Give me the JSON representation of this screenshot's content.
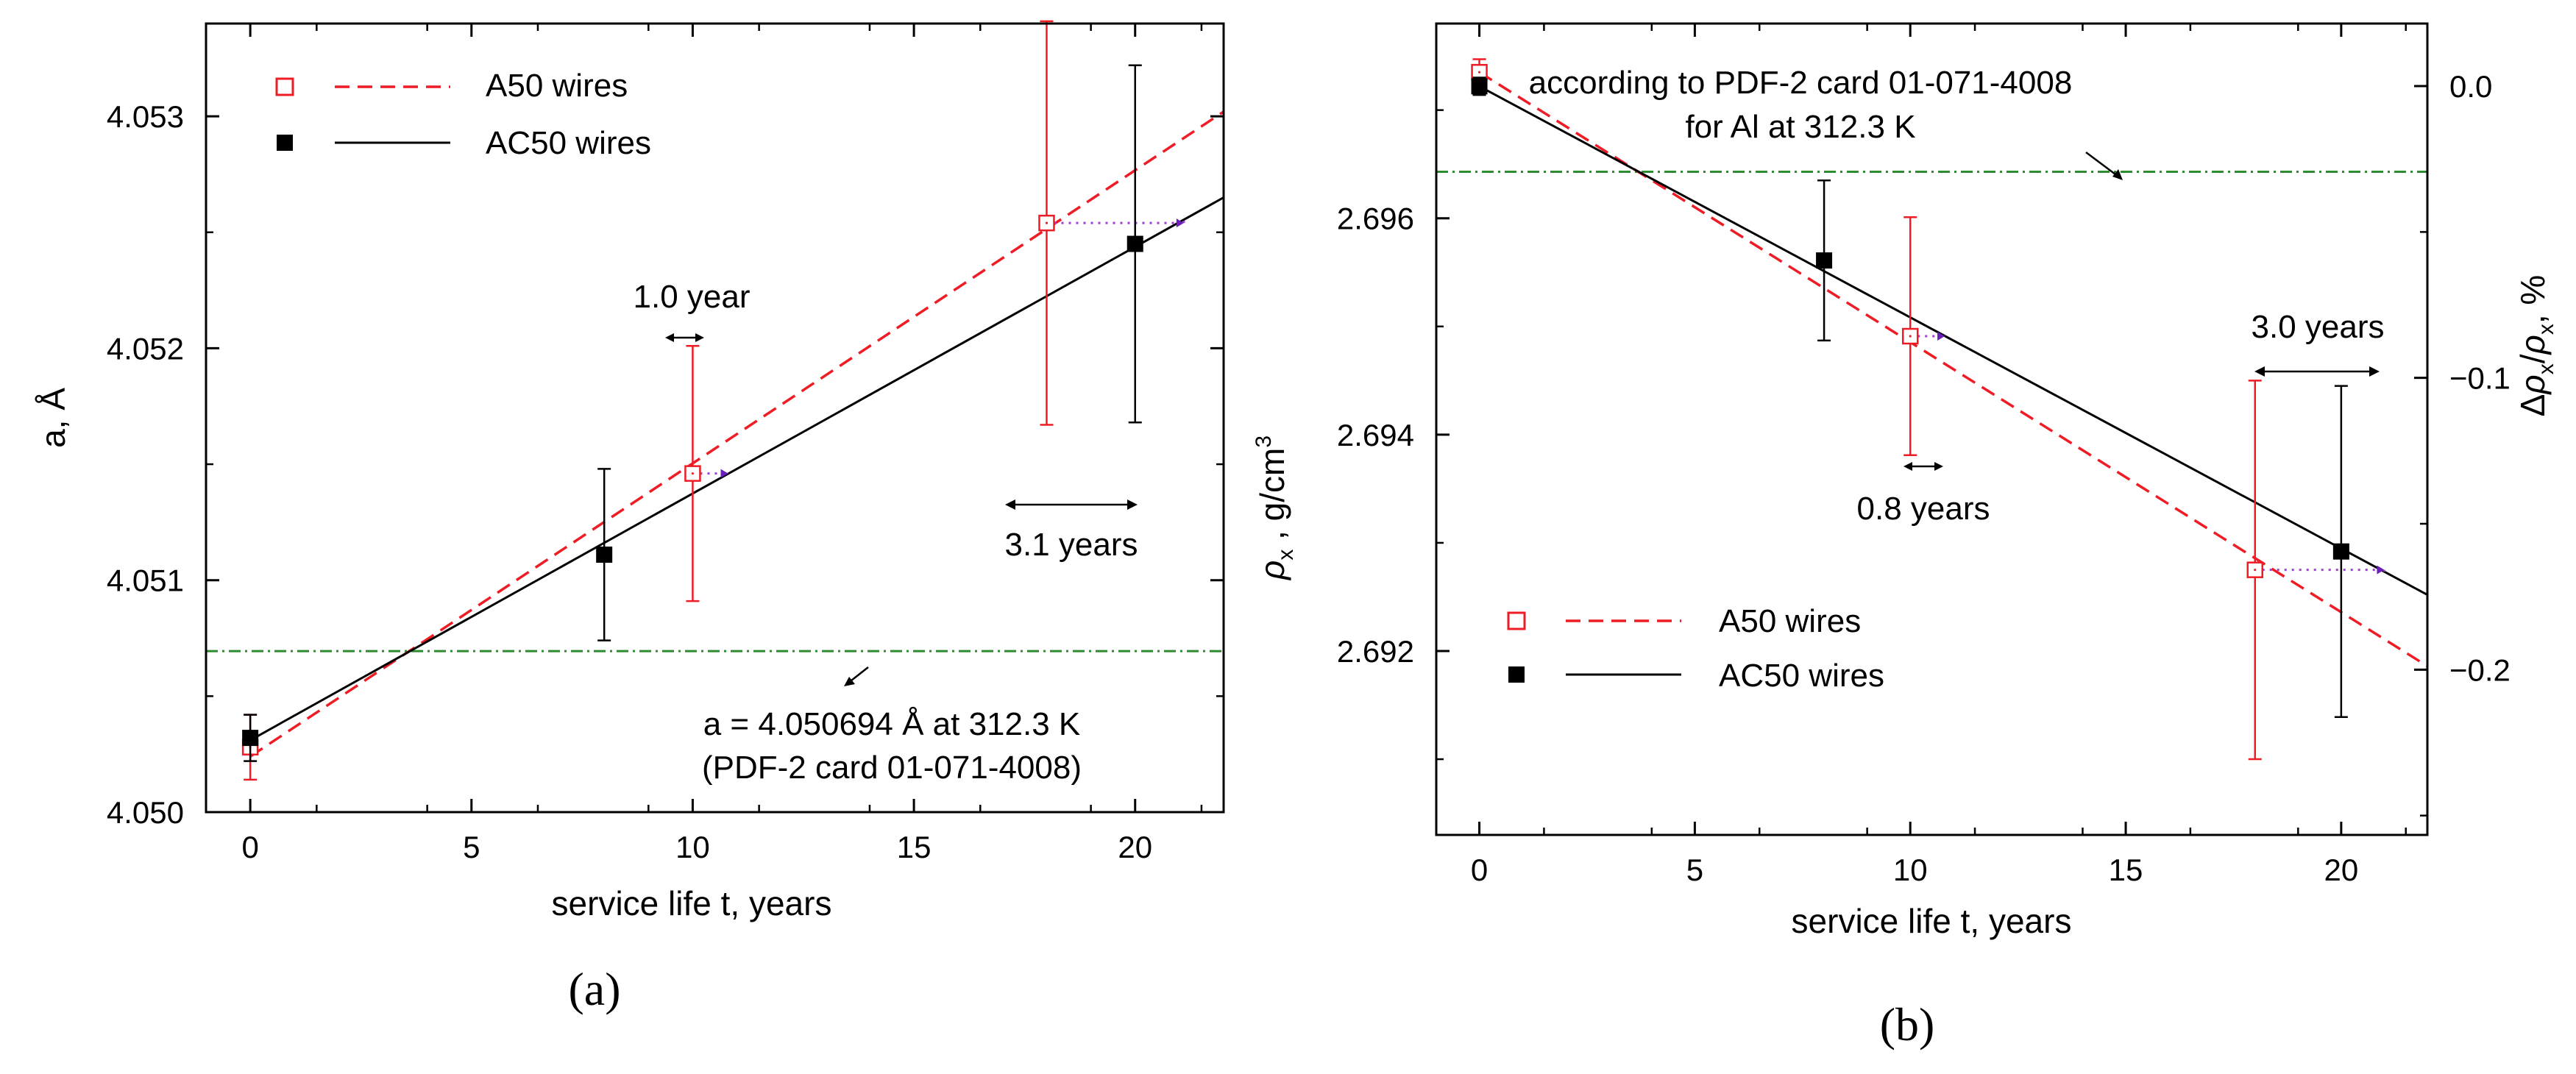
{
  "chart_data": [
    {
      "type": "scatter",
      "panel_label": "a",
      "xlabel": "service life t, years",
      "ylabel": "a, Å",
      "xlim": [
        -1,
        22
      ],
      "ylim": [
        4.05,
        4.0534
      ],
      "xticks": [
        0,
        5,
        10,
        15,
        20
      ],
      "xtick_labels": [
        "0",
        "5",
        "10",
        "15",
        "20"
      ],
      "yticks": [
        4.05,
        4.051,
        4.052,
        4.053
      ],
      "ytick_labels": [
        "4.050",
        "4.051",
        "4.052",
        "4.053"
      ],
      "legend_position": "top-left",
      "series": [
        {
          "name": "A50 wires",
          "color": "#ee1c25",
          "marker": "open-square",
          "line": "dashed",
          "x": [
            0,
            10,
            18
          ],
          "y": [
            4.05028,
            4.05146,
            4.05254
          ],
          "yerr": [
            0.00014,
            0.00055,
            0.00087
          ],
          "fit": {
            "x": [
              0,
              22
            ],
            "y": [
              4.05024,
              4.05302
            ]
          }
        },
        {
          "name": "AC50 wires",
          "color": "#000000",
          "marker": "filled-square",
          "line": "solid",
          "x": [
            0,
            8,
            20
          ],
          "y": [
            4.05032,
            4.05111,
            4.05245
          ],
          "yerr": [
            0.0001,
            0.00037,
            0.00077
          ],
          "fit": {
            "x": [
              0,
              22
            ],
            "y": [
              4.05031,
              4.05265
            ]
          }
        }
      ],
      "reference_line": {
        "y": 4.050694,
        "color": "#2e8b2e",
        "style": "dash-dot"
      },
      "annotations": [
        {
          "text": "1.0 year",
          "arrow_x": [
            10.1,
            10.8
          ]
        },
        {
          "text": "3.1 years",
          "arrow_x": [
            18,
            21.1
          ]
        },
        {
          "text": "a = 4.050694 Å at 312.3 K"
        },
        {
          "text": "(PDF-2 card 01-071-4008)"
        }
      ]
    },
    {
      "type": "scatter",
      "panel_label": "b",
      "xlabel": "service life t, years",
      "ylabel": "ρx , g/cm3",
      "y2label": "Δρx/ρx, %",
      "xlim": [
        -1,
        22
      ],
      "ylim": [
        2.6903,
        2.6978
      ],
      "xticks": [
        0,
        5,
        10,
        15,
        20
      ],
      "xtick_labels": [
        "0",
        "5",
        "10",
        "15",
        "20"
      ],
      "yticks": [
        2.692,
        2.694,
        2.696
      ],
      "ytick_labels": [
        "2.692",
        "2.694",
        "2.696"
      ],
      "y2ticks": [
        0.0,
        -0.1,
        -0.2
      ],
      "y2tick_labels": [
        "0.0",
        "−0.1",
        "−0.2"
      ],
      "legend_position": "bottom-left",
      "series": [
        {
          "name": "A50 wires",
          "color": "#ee1c25",
          "marker": "open-square",
          "line": "dashed",
          "x": [
            0,
            10,
            18
          ],
          "y": [
            2.69735,
            2.69491,
            2.69275
          ],
          "yerr": [
            0.00012,
            0.0011,
            0.00175
          ],
          "fit": {
            "x": [
              0,
              22
            ],
            "y": [
              2.69735,
              2.69186
            ]
          }
        },
        {
          "name": "AC50 wires",
          "color": "#000000",
          "marker": "filled-square",
          "line": "solid",
          "x": [
            0,
            8,
            20
          ],
          "y": [
            2.69722,
            2.69561,
            2.69292
          ],
          "yerr": [
            8e-05,
            0.00074,
            0.00153
          ],
          "fit": {
            "x": [
              0,
              22
            ],
            "y": [
              2.69722,
              2.69252
            ]
          }
        }
      ],
      "reference_line": {
        "y": 2.69643,
        "color": "#2e8b2e",
        "style": "dash-dot"
      },
      "annotations": [
        {
          "text": "according to PDF-2 card 01-071-4008"
        },
        {
          "text": "for Al at 312.3 K"
        },
        {
          "text": "0.8 years",
          "arrow_x": [
            10.1,
            10.8
          ]
        },
        {
          "text": "3.0 years",
          "arrow_x": [
            18,
            21
          ]
        }
      ]
    }
  ],
  "panel_labels": [
    "(a)",
    "(b)"
  ],
  "colors": {
    "a50": "#ee1c25",
    "ac50": "#000000",
    "reference": "#2e8b2e",
    "guide": "#a13cd6",
    "axis": "#000000"
  }
}
